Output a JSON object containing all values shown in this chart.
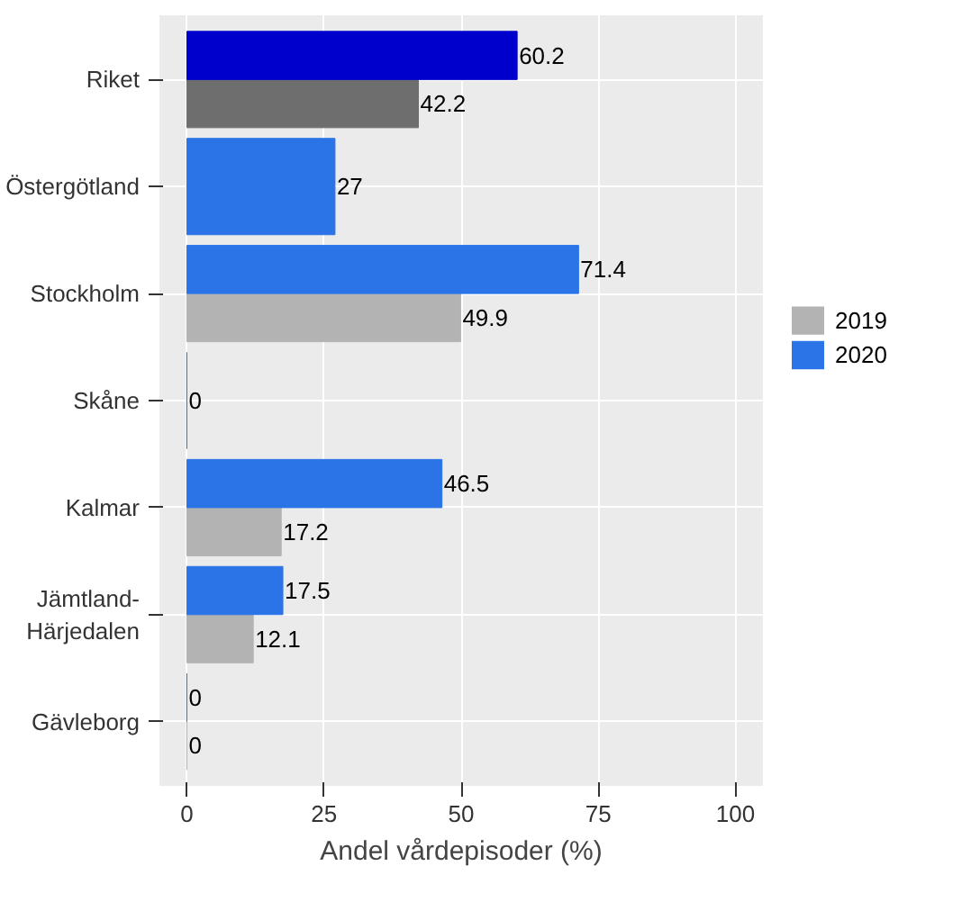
{
  "chart_data": {
    "type": "bar",
    "orientation": "horizontal",
    "xlabel": "Andel vårdepisoder (%)",
    "categories": [
      "Riket",
      "Östergötland",
      "Stockholm",
      "Skåne",
      "Kalmar",
      "Jämtland-Härjedalen",
      "Gävleborg"
    ],
    "series": [
      {
        "name": "2019",
        "color": "#b3b3b3",
        "colors": [
          "#6e6e6e",
          "#b3b3b3",
          "#b3b3b3",
          "#b3b3b3",
          "#b3b3b3",
          "#b3b3b3",
          "#b3b3b3"
        ],
        "values": [
          42.2,
          null,
          49.9,
          null,
          17.2,
          12.1,
          0
        ]
      },
      {
        "name": "2020",
        "color": "#2a74e8",
        "colors": [
          "#0000cc",
          "#2a74e8",
          "#2a74e8",
          "#2a74e8",
          "#2a74e8",
          "#2a74e8",
          "#2a74e8"
        ],
        "values": [
          60.2,
          27,
          71.4,
          0,
          46.5,
          17.5,
          0
        ]
      }
    ],
    "xlim": [
      -5,
      105
    ],
    "xticks": [
      0,
      25,
      50,
      75,
      100
    ],
    "grid": true,
    "legend": "right",
    "data_labels": true
  }
}
